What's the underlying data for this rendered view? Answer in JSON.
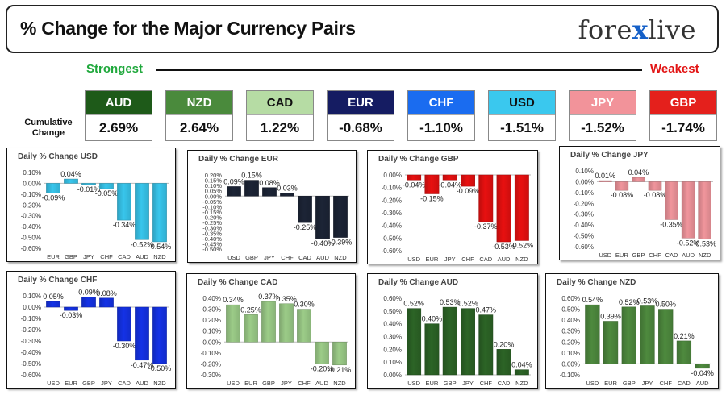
{
  "header": {
    "title": "% Change for the Major Currency Pairs",
    "logo_pre": "fore",
    "logo_x": "x",
    "logo_post": "live"
  },
  "strength_bar": {
    "strongest": "Strongest",
    "weakest": "Weakest",
    "cumulative_label": "Cumulative Change"
  },
  "currencies": [
    {
      "name": "AUD",
      "value": "2.69%",
      "bg": "#1e5a19",
      "fg": "#ffffff"
    },
    {
      "name": "NZD",
      "value": "2.64%",
      "bg": "#4a8a3c",
      "fg": "#ffffff"
    },
    {
      "name": "CAD",
      "value": "1.22%",
      "bg": "#b6dca4",
      "fg": "#111111"
    },
    {
      "name": "EUR",
      "value": "-0.68%",
      "bg": "#151c62",
      "fg": "#ffffff"
    },
    {
      "name": "CHF",
      "value": "-1.10%",
      "bg": "#1a6cf0",
      "fg": "#ffffff"
    },
    {
      "name": "USD",
      "value": "-1.51%",
      "bg": "#3ac8ee",
      "fg": "#111111"
    },
    {
      "name": "JPY",
      "value": "-1.52%",
      "bg": "#f2939a",
      "fg": "#ffffff"
    },
    {
      "name": "GBP",
      "value": "-1.74%",
      "bg": "#e4201c",
      "fg": "#ffffff"
    }
  ],
  "chart_data": [
    {
      "type": "bar",
      "title": "Daily % Change USD",
      "categories": [
        "EUR",
        "GBP",
        "JPY",
        "CHF",
        "CAD",
        "AUD",
        "NZD"
      ],
      "values": [
        -0.09,
        0.04,
        -0.01,
        -0.05,
        -0.34,
        -0.52,
        -0.54
      ],
      "labels": [
        "-0.09%",
        "0.04%",
        "-0.01%",
        "-0.05%",
        "-0.34%",
        "-0.52%",
        "-0.54%"
      ],
      "yticks": [
        "0.10%",
        "0.00%",
        "-0.10%",
        "-0.20%",
        "-0.30%",
        "-0.40%",
        "-0.50%",
        "-0.60%"
      ],
      "ylim": [
        -0.6,
        0.1
      ],
      "color": "#38c6ec"
    },
    {
      "type": "bar",
      "title": "Daily % Change EUR",
      "categories": [
        "USD",
        "GBP",
        "JPY",
        "CHF",
        "CAD",
        "AUD",
        "NZD"
      ],
      "values": [
        0.09,
        0.15,
        0.08,
        0.03,
        -0.25,
        -0.4,
        -0.39
      ],
      "labels": [
        "0.09%",
        "0.15%",
        "0.08%",
        "0.03%",
        "-0.25%",
        "-0.40%",
        "-0.39%"
      ],
      "yticks": [
        "0.20%",
        "0.15%",
        "0.10%",
        "0.05%",
        "0.00%",
        "-0.05%",
        "-0.10%",
        "-0.15%",
        "-0.20%",
        "-0.25%",
        "-0.30%",
        "-0.35%",
        "-0.40%",
        "-0.45%",
        "-0.50%"
      ],
      "ylim": [
        -0.5,
        0.2
      ],
      "color": "#1c2436"
    },
    {
      "type": "bar",
      "title": "Daily % Change GBP",
      "categories": [
        "USD",
        "EUR",
        "JPY",
        "CHF",
        "CAD",
        "AUD",
        "NZD"
      ],
      "values": [
        -0.04,
        -0.15,
        -0.04,
        -0.09,
        -0.37,
        -0.53,
        -0.52
      ],
      "labels": [
        "-0.04%",
        "-0.15%",
        "-0.04%",
        "-0.09%",
        "-0.37%",
        "-0.53%",
        "-0.52%"
      ],
      "yticks": [
        "0.00%",
        "-0.10%",
        "-0.20%",
        "-0.30%",
        "-0.40%",
        "-0.50%",
        "-0.60%"
      ],
      "ylim": [
        -0.6,
        0.0
      ],
      "color": "#e81010"
    },
    {
      "type": "bar",
      "title": "Daily % Change JPY",
      "categories": [
        "USD",
        "EUR",
        "GBP",
        "CHF",
        "CAD",
        "AUD",
        "NZD"
      ],
      "values": [
        0.01,
        -0.08,
        0.04,
        -0.08,
        -0.35,
        -0.52,
        -0.53
      ],
      "labels": [
        "0.01%",
        "-0.08%",
        "0.04%",
        "-0.08%",
        "-0.35%",
        "-0.52%",
        "-0.53%"
      ],
      "yticks": [
        "0.10%",
        "0.00%",
        "-0.10%",
        "-0.20%",
        "-0.30%",
        "-0.40%",
        "-0.50%",
        "-0.60%"
      ],
      "ylim": [
        -0.6,
        0.1
      ],
      "color": "#f0959c"
    },
    {
      "type": "bar",
      "title": "Daily % Change CHF",
      "categories": [
        "USD",
        "EUR",
        "GBP",
        "JPY",
        "CAD",
        "AUD",
        "NZD"
      ],
      "values": [
        0.05,
        -0.03,
        0.09,
        0.08,
        -0.3,
        -0.47,
        -0.5
      ],
      "labels": [
        "0.05%",
        "-0.03%",
        "0.09%",
        "0.08%",
        "-0.30%",
        "-0.47%",
        "-0.50%"
      ],
      "yticks": [
        "0.10%",
        "0.00%",
        "-0.10%",
        "-0.20%",
        "-0.30%",
        "-0.40%",
        "-0.50%",
        "-0.60%"
      ],
      "ylim": [
        -0.6,
        0.1
      ],
      "color": "#1432e6"
    },
    {
      "type": "bar",
      "title": "Daily % Change CAD",
      "categories": [
        "USD",
        "EUR",
        "GBP",
        "JPY",
        "CHF",
        "AUD",
        "NZD"
      ],
      "values": [
        0.34,
        0.25,
        0.37,
        0.35,
        0.3,
        -0.2,
        -0.21
      ],
      "labels": [
        "0.34%",
        "0.25%",
        "0.37%",
        "0.35%",
        "0.30%",
        "-0.20%",
        "-0.21%"
      ],
      "yticks": [
        "0.40%",
        "0.30%",
        "0.20%",
        "0.10%",
        "0.00%",
        "-0.10%",
        "-0.20%",
        "-0.30%"
      ],
      "ylim": [
        -0.3,
        0.4
      ],
      "color": "#9ccc88"
    },
    {
      "type": "bar",
      "title": "Daily % Change AUD",
      "categories": [
        "USD",
        "EUR",
        "GBP",
        "JPY",
        "CHF",
        "CAD",
        "NZD"
      ],
      "values": [
        0.52,
        0.4,
        0.53,
        0.52,
        0.47,
        0.2,
        0.04
      ],
      "labels": [
        "0.52%",
        "0.40%",
        "0.53%",
        "0.52%",
        "0.47%",
        "0.20%",
        "0.04%"
      ],
      "yticks": [
        "0.60%",
        "0.50%",
        "0.40%",
        "0.30%",
        "0.20%",
        "0.10%",
        "0.00%"
      ],
      "ylim": [
        0.0,
        0.6
      ],
      "color": "#2c6426"
    },
    {
      "type": "bar",
      "title": "Daily % Change NZD",
      "categories": [
        "USD",
        "EUR",
        "GBP",
        "JPY",
        "CHF",
        "CAD",
        "AUD"
      ],
      "values": [
        0.54,
        0.39,
        0.52,
        0.53,
        0.5,
        0.21,
        -0.04
      ],
      "labels": [
        "0.54%",
        "0.39%",
        "0.52%",
        "0.53%",
        "0.50%",
        "0.21%",
        "-0.04%"
      ],
      "yticks": [
        "0.60%",
        "0.50%",
        "0.40%",
        "0.30%",
        "0.20%",
        "0.10%",
        "0.00%",
        "-0.10%"
      ],
      "ylim": [
        -0.1,
        0.6
      ],
      "color": "#4e8a3e"
    }
  ]
}
